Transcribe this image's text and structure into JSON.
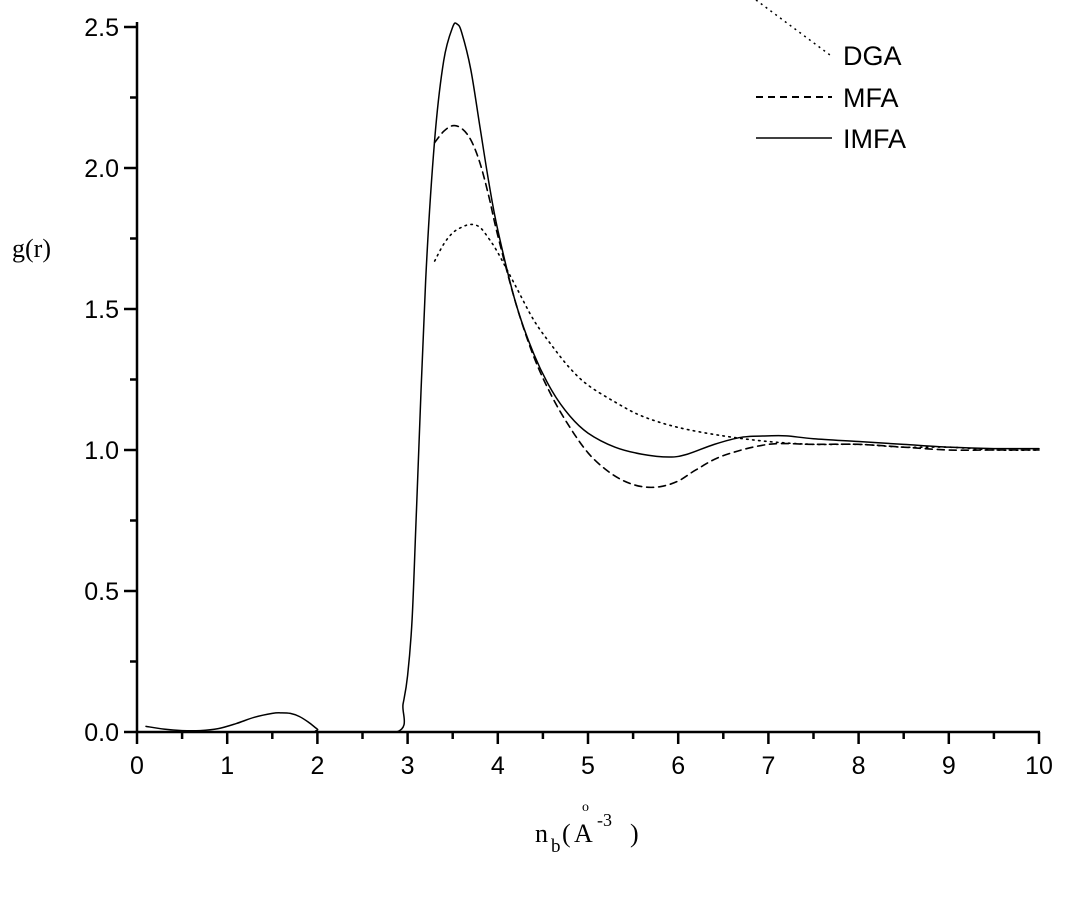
{
  "chart_data": {
    "type": "line",
    "title": "",
    "xlabel": "n_b(Å^-3 )",
    "xlabel_parts": {
      "main": "n",
      "sub": "b",
      "open": "(",
      "unit": "A",
      "ring": "o",
      "sup": "-3",
      "close": ")"
    },
    "ylabel": "g(r)",
    "xlim": [
      0,
      10
    ],
    "ylim": [
      0,
      2.5
    ],
    "x_ticks": [
      "0",
      "1",
      "2",
      "3",
      "4",
      "5",
      "6",
      "7",
      "8",
      "9",
      "10"
    ],
    "y_ticks": [
      "0.0",
      "0.5",
      "1.0",
      "1.5",
      "2.0",
      "2.5"
    ],
    "grid": false,
    "legend_position": "upper right",
    "series": [
      {
        "name": "DGA",
        "style": "dotted",
        "x": [
          3.3,
          3.4,
          3.5,
          3.6,
          3.7,
          3.8,
          3.9,
          4.0,
          4.2,
          4.4,
          4.6,
          4.8,
          5.0,
          5.3,
          5.6,
          6.0,
          6.5,
          7.0,
          7.5,
          8.0,
          8.5,
          9.0,
          9.5,
          10.0
        ],
        "y": [
          1.67,
          1.73,
          1.77,
          1.79,
          1.8,
          1.79,
          1.75,
          1.7,
          1.58,
          1.46,
          1.37,
          1.29,
          1.23,
          1.17,
          1.12,
          1.08,
          1.05,
          1.03,
          1.02,
          1.02,
          1.01,
          1.01,
          1.0,
          1.0
        ]
      },
      {
        "name": "MFA",
        "style": "dashed",
        "x": [
          3.3,
          3.4,
          3.5,
          3.6,
          3.7,
          3.8,
          3.9,
          4.0,
          4.2,
          4.4,
          4.6,
          4.8,
          5.0,
          5.2,
          5.4,
          5.6,
          5.8,
          6.0,
          6.2,
          6.5,
          7.0,
          7.5,
          8.0,
          8.5,
          9.0,
          9.5,
          10.0
        ],
        "y": [
          2.09,
          2.13,
          2.15,
          2.14,
          2.1,
          2.02,
          1.9,
          1.76,
          1.52,
          1.33,
          1.19,
          1.08,
          0.99,
          0.93,
          0.89,
          0.87,
          0.87,
          0.89,
          0.93,
          0.98,
          1.02,
          1.02,
          1.02,
          1.01,
          1.0,
          1.0,
          1.0
        ]
      },
      {
        "name": "IMFA",
        "style": "solid",
        "x": [
          0.1,
          0.3,
          0.5,
          0.7,
          0.9,
          1.1,
          1.3,
          1.5,
          1.6,
          1.7,
          1.8,
          1.9,
          2.0,
          2.05,
          2.88,
          2.95,
          3.0,
          3.05,
          3.1,
          3.2,
          3.3,
          3.4,
          3.5,
          3.55,
          3.6,
          3.7,
          3.8,
          3.9,
          4.0,
          4.2,
          4.4,
          4.6,
          4.8,
          5.0,
          5.3,
          5.6,
          5.9,
          6.1,
          6.4,
          6.7,
          7.0,
          7.2,
          7.5,
          8.0,
          8.5,
          9.0,
          9.5,
          10.0
        ],
        "y": [
          0.02,
          0.01,
          0.005,
          0.005,
          0.012,
          0.03,
          0.052,
          0.066,
          0.068,
          0.066,
          0.055,
          0.035,
          0.01,
          0.0,
          0.0,
          0.1,
          0.2,
          0.4,
          0.8,
          1.6,
          2.1,
          2.38,
          2.5,
          2.51,
          2.48,
          2.35,
          2.15,
          1.95,
          1.78,
          1.52,
          1.34,
          1.21,
          1.12,
          1.06,
          1.01,
          0.985,
          0.975,
          0.985,
          1.02,
          1.045,
          1.05,
          1.05,
          1.04,
          1.03,
          1.02,
          1.01,
          1.005,
          1.005
        ]
      }
    ]
  },
  "legend": {
    "items": [
      {
        "label": "DGA",
        "style": "dotted"
      },
      {
        "label": "MFA",
        "style": "dashed"
      },
      {
        "label": "IMFA",
        "style": "solid"
      }
    ]
  },
  "colors": {
    "line": "#000000",
    "background": "#ffffff"
  }
}
